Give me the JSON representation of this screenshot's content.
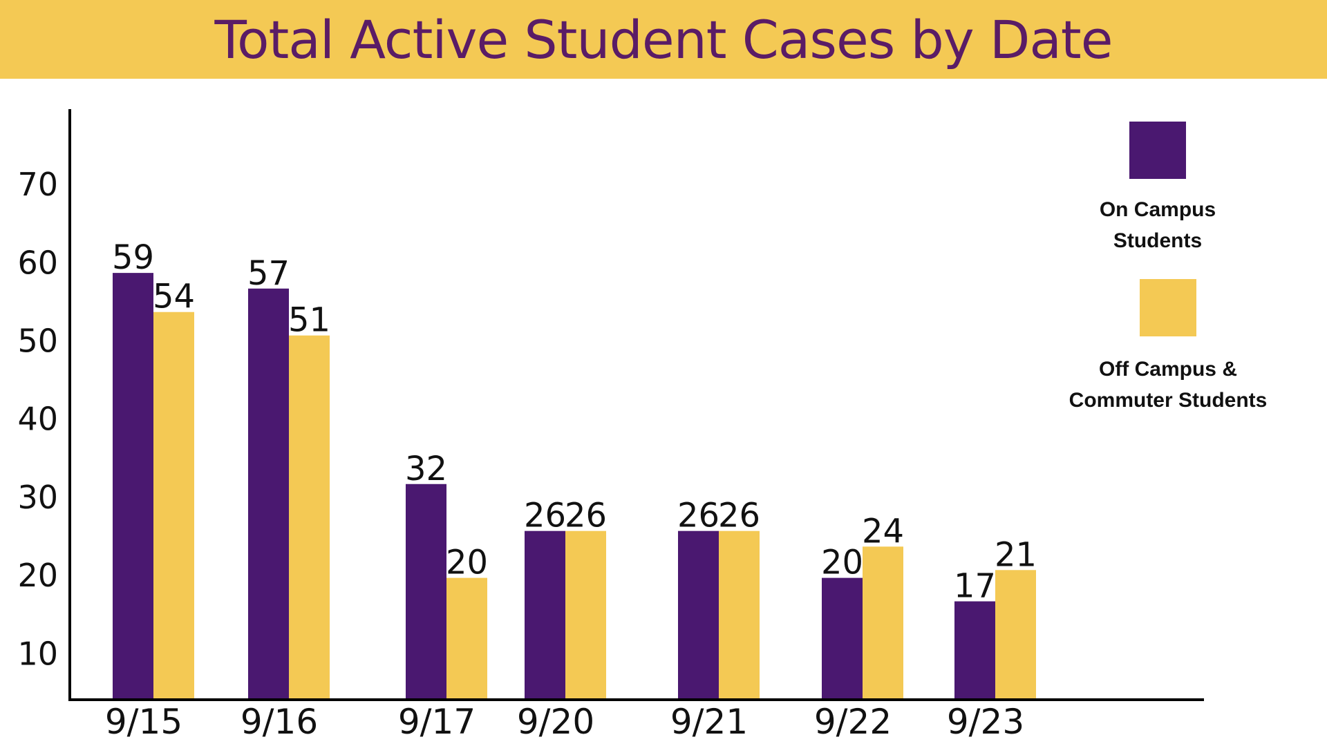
{
  "chart_data": {
    "type": "bar",
    "title": "Total Active Student Cases by Date",
    "categories": [
      "9/15",
      "9/16",
      "9/17",
      "9/20",
      "9/21",
      "9/22",
      "9/23"
    ],
    "series": [
      {
        "name": "On Campus Students",
        "values": [
          59,
          57,
          32,
          26,
          26,
          20,
          17
        ],
        "color": "#4a1870"
      },
      {
        "name": "Off Campus & Commuter Students",
        "values": [
          54,
          51,
          20,
          26,
          26,
          24,
          21
        ],
        "color": "#f4c954"
      }
    ],
    "yticks": [
      10,
      20,
      30,
      40,
      50,
      60,
      70
    ],
    "ylim": [
      5,
      78
    ],
    "xlabel": "",
    "ylabel": "",
    "grid": false,
    "data_labels": true,
    "legend_position": "right"
  },
  "legend": {
    "on_campus_label": "On Campus\nStudents",
    "off_campus_label": "Off Campus &\nCommuter Students"
  },
  "colors": {
    "title_band": "#f4c954",
    "title_text": "#5a1c66",
    "axis": "#000000"
  }
}
